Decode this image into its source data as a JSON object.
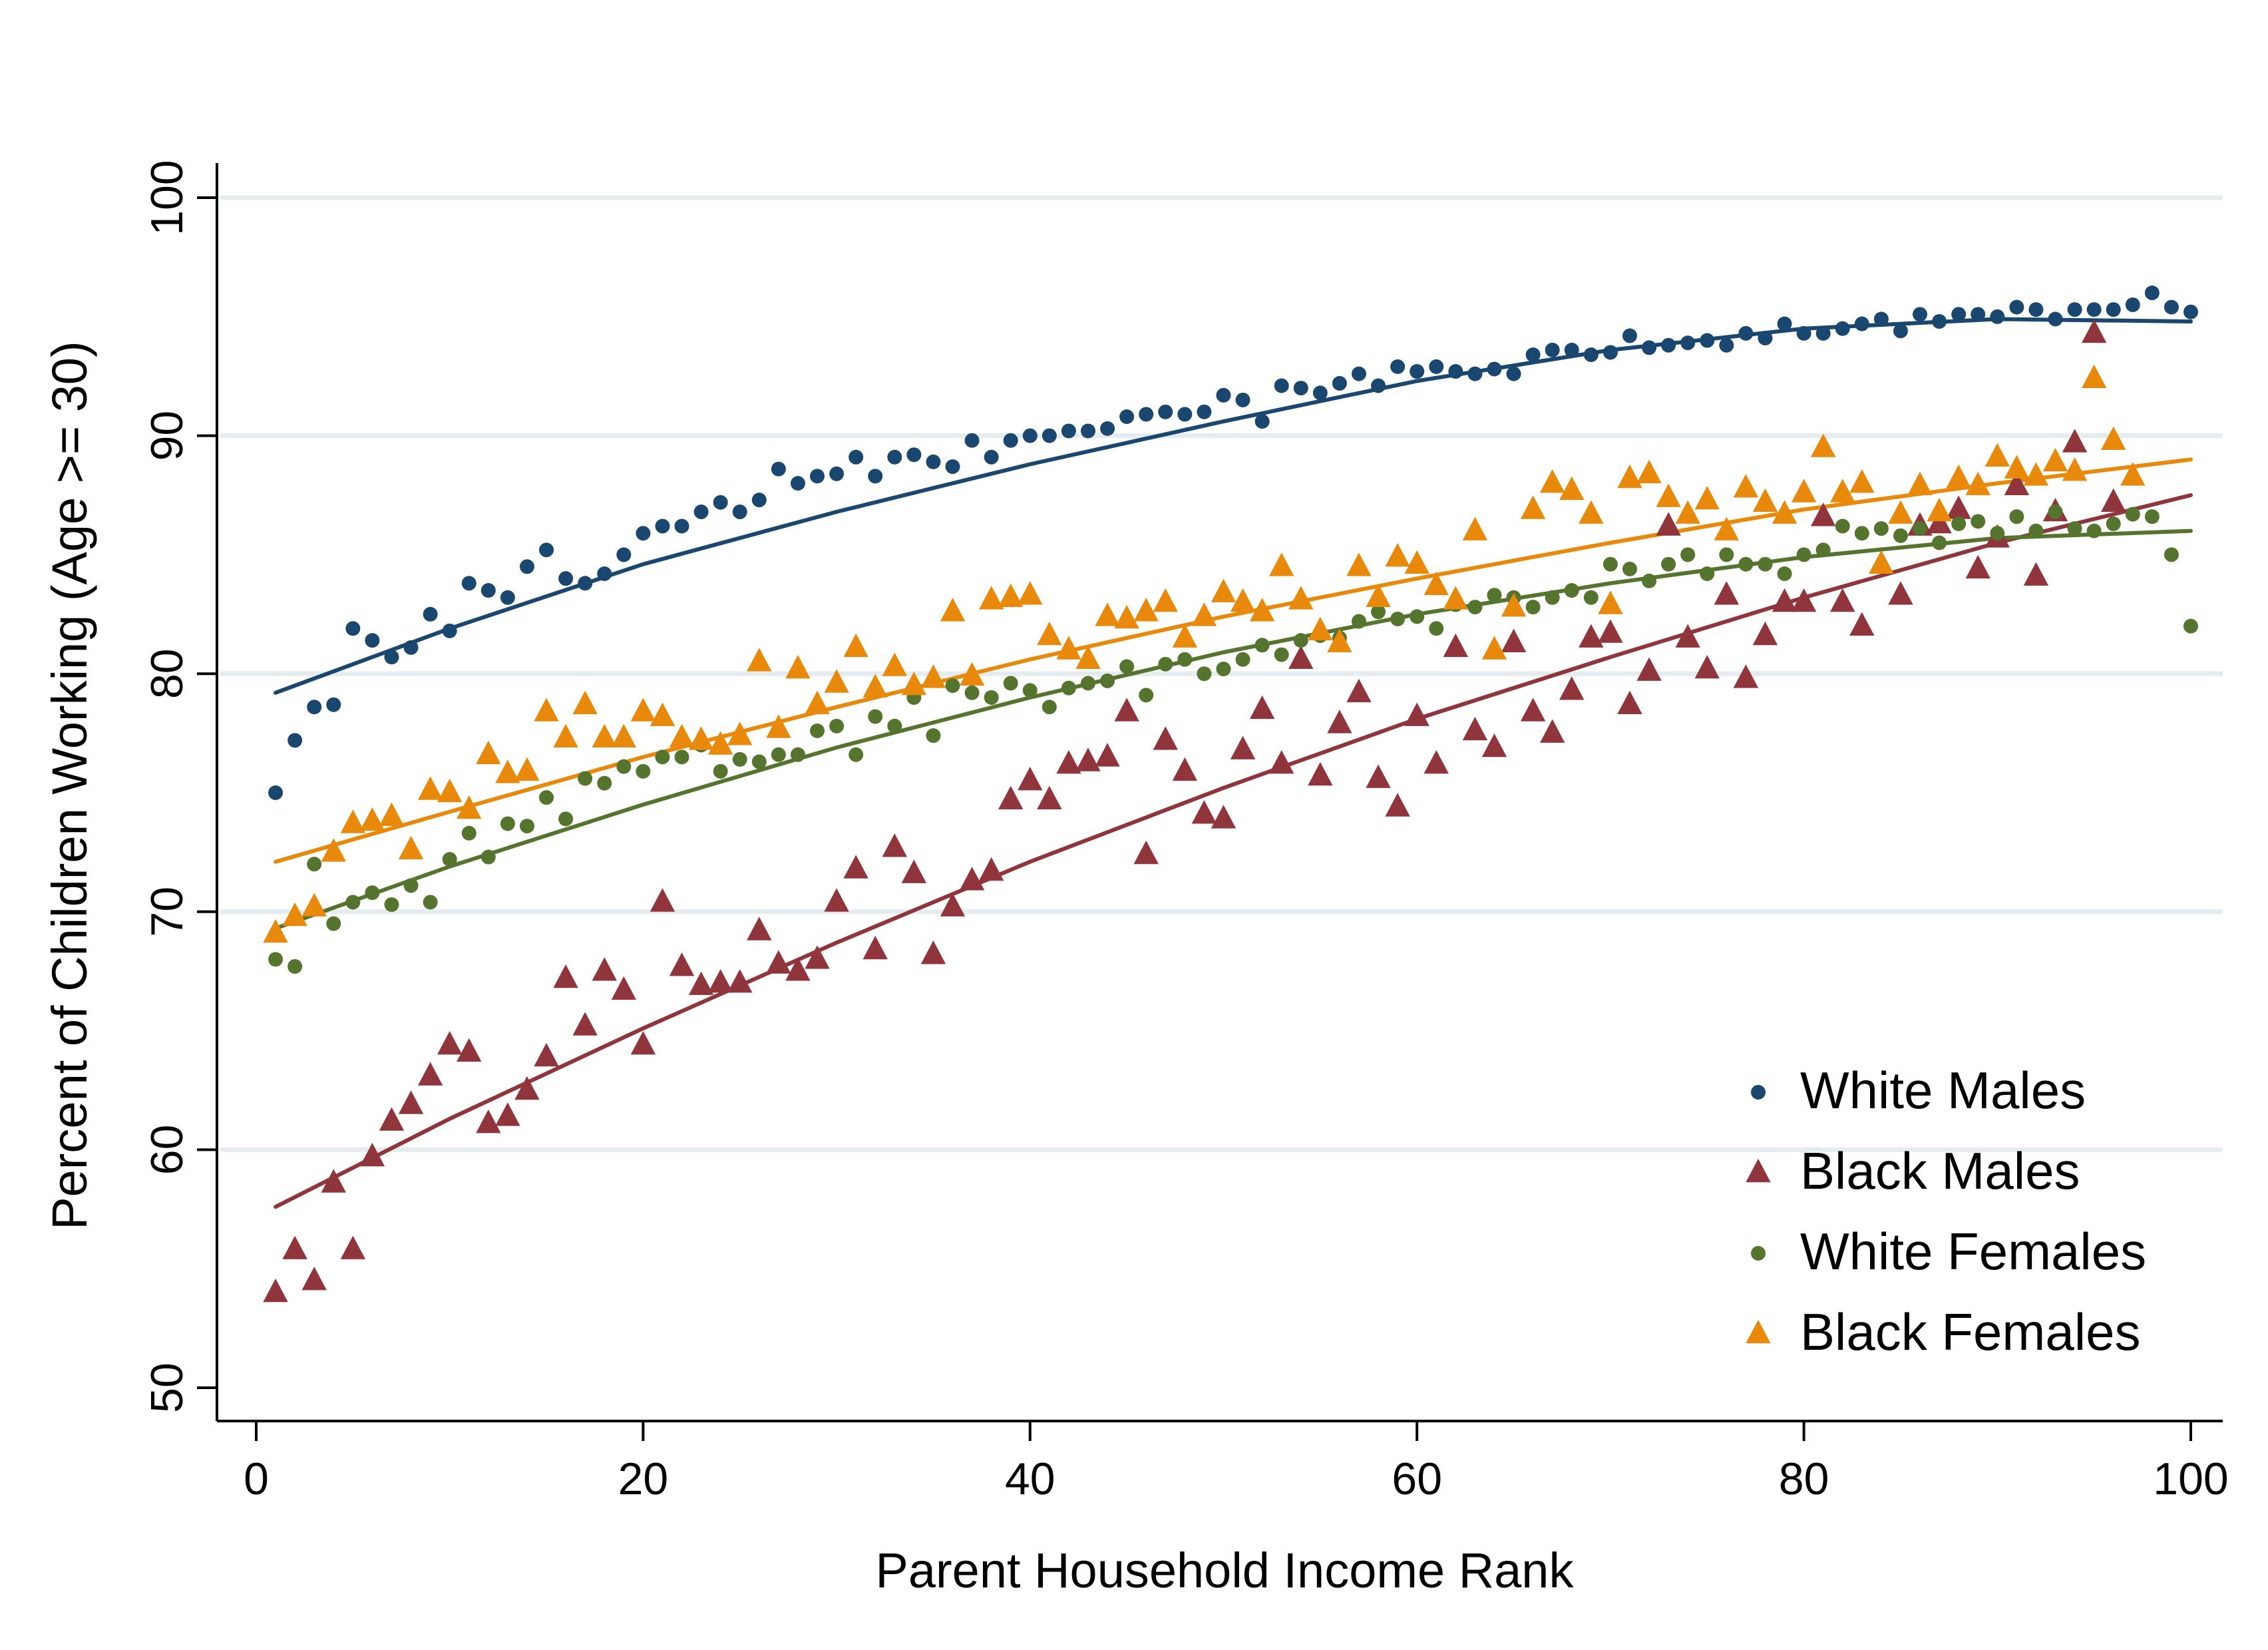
{
  "chart_data": {
    "type": "scatter",
    "xlabel": "Parent Household Income Rank",
    "ylabel": "Percent of Children Working (Age >= 30)",
    "xlim": [
      0,
      100
    ],
    "ylim": [
      50,
      100
    ],
    "xticks": [
      0,
      20,
      40,
      60,
      80,
      100
    ],
    "yticks": [
      50,
      60,
      70,
      80,
      90,
      100
    ],
    "grid": "horizontal",
    "legend_position": "bottom-right",
    "fit_lines": true,
    "series": [
      {
        "name": "White Males",
        "marker": "circle",
        "color": "#1a476f",
        "x": [
          1,
          2,
          3,
          4,
          5,
          6,
          7,
          8,
          9,
          10,
          11,
          12,
          13,
          14,
          15,
          16,
          17,
          18,
          19,
          20,
          21,
          22,
          23,
          24,
          25,
          26,
          27,
          28,
          29,
          30,
          31,
          32,
          33,
          34,
          35,
          36,
          37,
          38,
          39,
          40,
          41,
          42,
          43,
          44,
          45,
          46,
          47,
          48,
          49,
          50,
          51,
          52,
          53,
          54,
          55,
          56,
          57,
          58,
          59,
          60,
          61,
          62,
          63,
          64,
          65,
          66,
          67,
          68,
          69,
          70,
          71,
          72,
          73,
          74,
          75,
          76,
          77,
          78,
          79,
          80,
          81,
          82,
          83,
          84,
          85,
          86,
          87,
          88,
          89,
          90,
          91,
          92,
          93,
          94,
          95,
          96,
          97,
          98,
          99,
          100
        ],
        "y": [
          75.0,
          77.2,
          78.6,
          78.7,
          81.9,
          81.4,
          80.7,
          81.1,
          82.5,
          81.8,
          83.8,
          83.5,
          83.2,
          84.5,
          85.2,
          84.0,
          83.8,
          84.2,
          85.0,
          85.9,
          86.2,
          86.2,
          86.8,
          87.2,
          86.8,
          87.3,
          88.6,
          88.0,
          88.3,
          88.4,
          89.1,
          88.3,
          89.1,
          89.2,
          88.9,
          88.7,
          89.8,
          89.1,
          89.8,
          90.0,
          90.0,
          90.2,
          90.2,
          90.3,
          90.8,
          90.9,
          91.0,
          90.9,
          91.0,
          91.7,
          91.5,
          90.6,
          92.1,
          92.0,
          91.8,
          92.2,
          92.6,
          92.1,
          92.9,
          92.7,
          92.9,
          92.7,
          92.6,
          92.8,
          92.6,
          93.4,
          93.6,
          93.6,
          93.4,
          93.5,
          94.2,
          93.7,
          93.8,
          93.9,
          94.0,
          93.8,
          94.3,
          94.1,
          94.7,
          94.3,
          94.3,
          94.5,
          94.7,
          94.9,
          94.4,
          95.1,
          94.8,
          95.1,
          95.1,
          95.0,
          95.4,
          95.3,
          94.9,
          95.3,
          95.3,
          95.3,
          95.5,
          96.0,
          95.4,
          95.2
        ],
        "fit": [
          [
            1,
            79.2
          ],
          [
            10,
            81.9
          ],
          [
            20,
            84.6
          ],
          [
            30,
            86.8
          ],
          [
            40,
            88.8
          ],
          [
            50,
            90.6
          ],
          [
            60,
            92.3
          ],
          [
            70,
            93.6
          ],
          [
            80,
            94.5
          ],
          [
            90,
            94.9
          ],
          [
            100,
            94.8
          ]
        ]
      },
      {
        "name": "Black Males",
        "marker": "triangle",
        "color": "#90353b",
        "x": [
          1,
          2,
          3,
          4,
          5,
          6,
          7,
          8,
          9,
          10,
          11,
          12,
          13,
          14,
          15,
          16,
          17,
          18,
          19,
          20,
          21,
          22,
          23,
          24,
          25,
          26,
          27,
          28,
          29,
          30,
          31,
          32,
          33,
          34,
          35,
          36,
          37,
          38,
          39,
          40,
          41,
          42,
          43,
          44,
          45,
          46,
          47,
          48,
          49,
          50,
          51,
          52,
          53,
          54,
          55,
          56,
          57,
          58,
          59,
          60,
          61,
          62,
          63,
          64,
          65,
          66,
          67,
          68,
          69,
          70,
          71,
          72,
          73,
          74,
          75,
          76,
          77,
          78,
          79,
          80,
          81,
          82,
          83,
          84,
          85,
          86,
          87,
          88,
          89,
          90,
          91,
          92,
          93,
          94,
          95,
          96
        ],
        "y": [
          54.0,
          55.8,
          54.5,
          58.6,
          55.8,
          59.7,
          61.2,
          61.9,
          63.1,
          64.4,
          64.1,
          61.1,
          61.4,
          62.5,
          63.9,
          67.2,
          65.2,
          67.5,
          66.7,
          64.4,
          70.4,
          67.7,
          66.9,
          67.0,
          67.0,
          69.2,
          67.8,
          67.5,
          68.0,
          70.4,
          71.8,
          68.4,
          72.7,
          71.6,
          68.2,
          70.2,
          71.3,
          71.7,
          74.7,
          75.5,
          74.7,
          76.2,
          76.3,
          76.5,
          78.4,
          72.4,
          77.2,
          75.9,
          74.1,
          73.9,
          76.8,
          78.5,
          76.2,
          80.6,
          75.7,
          77.9,
          79.2,
          75.6,
          74.4,
          78.2,
          76.2,
          81.1,
          77.6,
          76.9,
          81.3,
          78.4,
          77.5,
          79.3,
          81.5,
          81.7,
          78.7,
          80.1,
          86.2,
          81.5,
          80.2,
          83.3,
          79.8,
          81.6,
          83.0,
          83.0,
          86.6,
          83.0,
          82.0,
          84.6,
          83.3,
          86.2,
          86.3,
          86.9,
          84.4,
          85.7,
          87.9,
          84.1,
          86.8,
          89.7,
          94.3,
          87.2
        ],
        "fit": [
          [
            1,
            57.6
          ],
          [
            10,
            61.3
          ],
          [
            20,
            65.1
          ],
          [
            30,
            68.7
          ],
          [
            40,
            72.1
          ],
          [
            50,
            75.2
          ],
          [
            60,
            78.1
          ],
          [
            70,
            80.7
          ],
          [
            80,
            83.2
          ],
          [
            90,
            85.5
          ],
          [
            100,
            87.5
          ]
        ]
      },
      {
        "name": "White Females",
        "marker": "circle",
        "color": "#55752f",
        "x": [
          1,
          2,
          3,
          4,
          5,
          6,
          7,
          8,
          9,
          10,
          11,
          12,
          13,
          14,
          15,
          16,
          17,
          18,
          19,
          20,
          21,
          22,
          23,
          24,
          25,
          26,
          27,
          28,
          29,
          30,
          31,
          32,
          33,
          34,
          35,
          36,
          37,
          38,
          39,
          40,
          41,
          42,
          43,
          44,
          45,
          46,
          47,
          48,
          49,
          50,
          51,
          52,
          53,
          54,
          55,
          56,
          57,
          58,
          59,
          60,
          61,
          62,
          63,
          64,
          65,
          66,
          67,
          68,
          69,
          70,
          71,
          72,
          73,
          74,
          75,
          76,
          77,
          78,
          79,
          80,
          81,
          82,
          83,
          84,
          85,
          86,
          87,
          88,
          89,
          90,
          91,
          92,
          93,
          94,
          95,
          96,
          97,
          98,
          99,
          100
        ],
        "y": [
          68.0,
          67.7,
          72.0,
          69.5,
          70.4,
          70.8,
          70.3,
          71.1,
          70.4,
          72.2,
          73.3,
          72.3,
          73.7,
          73.6,
          74.8,
          73.9,
          75.6,
          75.4,
          76.1,
          75.9,
          76.5,
          76.5,
          77.0,
          75.9,
          76.4,
          76.3,
          76.6,
          76.6,
          77.6,
          77.8,
          76.6,
          78.2,
          77.8,
          79.0,
          77.4,
          79.5,
          79.2,
          79.0,
          79.6,
          79.3,
          78.6,
          79.4,
          79.6,
          79.7,
          80.3,
          79.1,
          80.4,
          80.6,
          80.0,
          80.2,
          80.6,
          81.2,
          80.8,
          81.4,
          81.6,
          81.5,
          82.2,
          82.6,
          82.3,
          82.4,
          81.9,
          82.9,
          82.8,
          83.3,
          83.2,
          82.8,
          83.2,
          83.5,
          83.2,
          84.6,
          84.4,
          83.9,
          84.6,
          85.0,
          84.2,
          85.0,
          84.6,
          84.6,
          84.2,
          85.0,
          85.2,
          86.2,
          85.9,
          86.1,
          85.8,
          86.1,
          85.5,
          86.3,
          86.4,
          85.9,
          86.6,
          86.0,
          86.8,
          86.1,
          86.0,
          86.3,
          86.7,
          86.6,
          85.0,
          82.0
        ],
        "fit": [
          [
            1,
            69.3
          ],
          [
            10,
            71.9
          ],
          [
            20,
            74.5
          ],
          [
            30,
            76.9
          ],
          [
            40,
            79.0
          ],
          [
            50,
            80.9
          ],
          [
            60,
            82.5
          ],
          [
            70,
            83.8
          ],
          [
            80,
            84.9
          ],
          [
            90,
            85.7
          ],
          [
            100,
            86.0
          ]
        ]
      },
      {
        "name": "Black Females",
        "marker": "triangle",
        "color": "#e8890c",
        "x": [
          1,
          2,
          3,
          4,
          5,
          6,
          7,
          8,
          9,
          10,
          11,
          12,
          13,
          14,
          15,
          16,
          17,
          18,
          19,
          20,
          21,
          22,
          23,
          24,
          25,
          26,
          27,
          28,
          29,
          30,
          31,
          32,
          33,
          34,
          35,
          36,
          37,
          38,
          39,
          40,
          41,
          42,
          43,
          44,
          45,
          46,
          47,
          48,
          49,
          50,
          51,
          52,
          53,
          54,
          55,
          56,
          57,
          58,
          59,
          60,
          61,
          62,
          63,
          64,
          65,
          66,
          67,
          68,
          69,
          70,
          71,
          72,
          73,
          74,
          75,
          76,
          77,
          78,
          79,
          80,
          81,
          82,
          83,
          84,
          85,
          86,
          87,
          88,
          89,
          90,
          91,
          92,
          93,
          94,
          95,
          96,
          97
        ],
        "y": [
          69.1,
          69.8,
          70.2,
          72.5,
          73.7,
          73.8,
          74.0,
          72.6,
          75.1,
          75.0,
          74.3,
          76.6,
          75.8,
          75.9,
          78.4,
          77.3,
          78.7,
          77.3,
          77.3,
          78.4,
          78.2,
          77.3,
          77.2,
          77.0,
          77.4,
          80.5,
          77.7,
          80.2,
          78.7,
          79.6,
          81.1,
          79.4,
          80.3,
          79.5,
          79.8,
          82.6,
          79.9,
          83.1,
          83.2,
          83.3,
          81.6,
          81.0,
          80.6,
          82.4,
          82.3,
          82.6,
          83.0,
          81.5,
          82.4,
          83.4,
          83.0,
          82.6,
          84.5,
          83.1,
          81.8,
          81.3,
          84.5,
          83.2,
          84.9,
          84.6,
          83.7,
          83.1,
          86.0,
          81.0,
          82.8,
          86.9,
          88.0,
          87.7,
          86.7,
          82.9,
          88.2,
          88.4,
          87.4,
          86.7,
          87.3,
          86.0,
          87.8,
          87.2,
          86.7,
          87.6,
          89.5,
          87.6,
          88.0,
          84.6,
          86.7,
          87.9,
          86.8,
          88.2,
          87.9,
          89.1,
          88.6,
          88.3,
          88.9,
          88.5,
          92.4,
          89.8,
          88.3
        ],
        "fit": [
          [
            1,
            72.1
          ],
          [
            10,
            74.2
          ],
          [
            20,
            76.5
          ],
          [
            30,
            78.6
          ],
          [
            40,
            80.6
          ],
          [
            50,
            82.4
          ],
          [
            60,
            84.0
          ],
          [
            70,
            85.5
          ],
          [
            80,
            86.9
          ],
          [
            90,
            88.0
          ],
          [
            100,
            89.0
          ]
        ]
      }
    ]
  }
}
